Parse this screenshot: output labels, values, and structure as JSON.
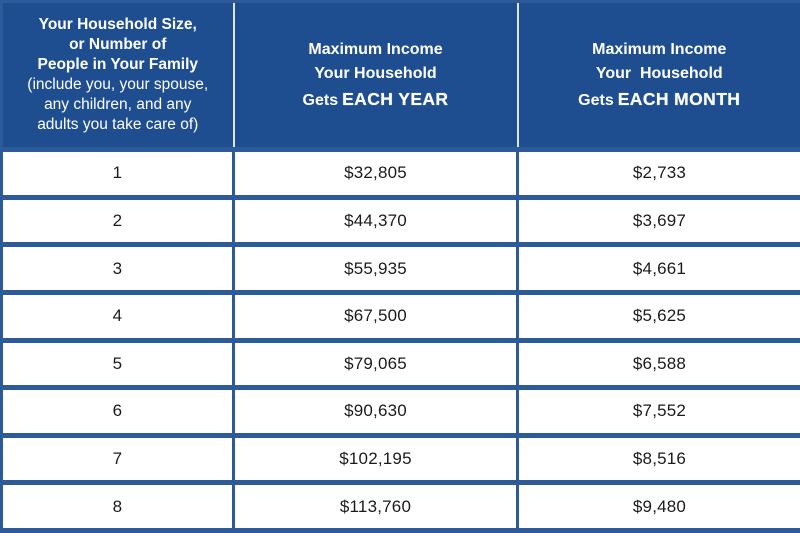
{
  "colors": {
    "header_bg": "#1f4e90",
    "grid_border": "#2d5b9a",
    "header_divider": "#dde7f3",
    "header_text": "#ffffff",
    "body_text": "#1b1b1b",
    "cell_bg": "#ffffff"
  },
  "table": {
    "header": {
      "household": {
        "title": "Your Household Size,\nor Number of\nPeople in Your Family",
        "subtitle": "(include you, your spouse,\nany children, and any\nadults you take care of)"
      },
      "yearly": {
        "main": "Maximum Income\nYour Household",
        "gets_label": "Gets",
        "emphasis": "EACH YEAR"
      },
      "monthly": {
        "main": "Maximum Income\nYour  Household",
        "gets_label": "Gets",
        "emphasis": "EACH MONTH"
      }
    }
  },
  "chart_data": {
    "type": "table",
    "title": "Household income limits by household size",
    "columns": [
      "Your Household Size, or Number of People in Your Family (include you, your spouse, any children, and any adults you take care of)",
      "Maximum Income Your Household Gets EACH YEAR",
      "Maximum Income Your Household Gets EACH MONTH"
    ],
    "rows": [
      [
        "1",
        "$32,805",
        "$2,733"
      ],
      [
        "2",
        "$44,370",
        "$3,697"
      ],
      [
        "3",
        "$55,935",
        "$4,661"
      ],
      [
        "4",
        "$67,500",
        "$5,625"
      ],
      [
        "5",
        "$79,065",
        "$6,588"
      ],
      [
        "6",
        "$90,630",
        "$7,552"
      ],
      [
        "7",
        "$102,195",
        "$8,516"
      ],
      [
        "8",
        "$113,760",
        "$9,480"
      ]
    ],
    "yearly_income_values": [
      32805,
      44370,
      55935,
      67500,
      79065,
      90630,
      102195,
      113760
    ],
    "monthly_income_values": [
      2733,
      3697,
      4661,
      5625,
      6588,
      7552,
      8516,
      9480
    ]
  }
}
